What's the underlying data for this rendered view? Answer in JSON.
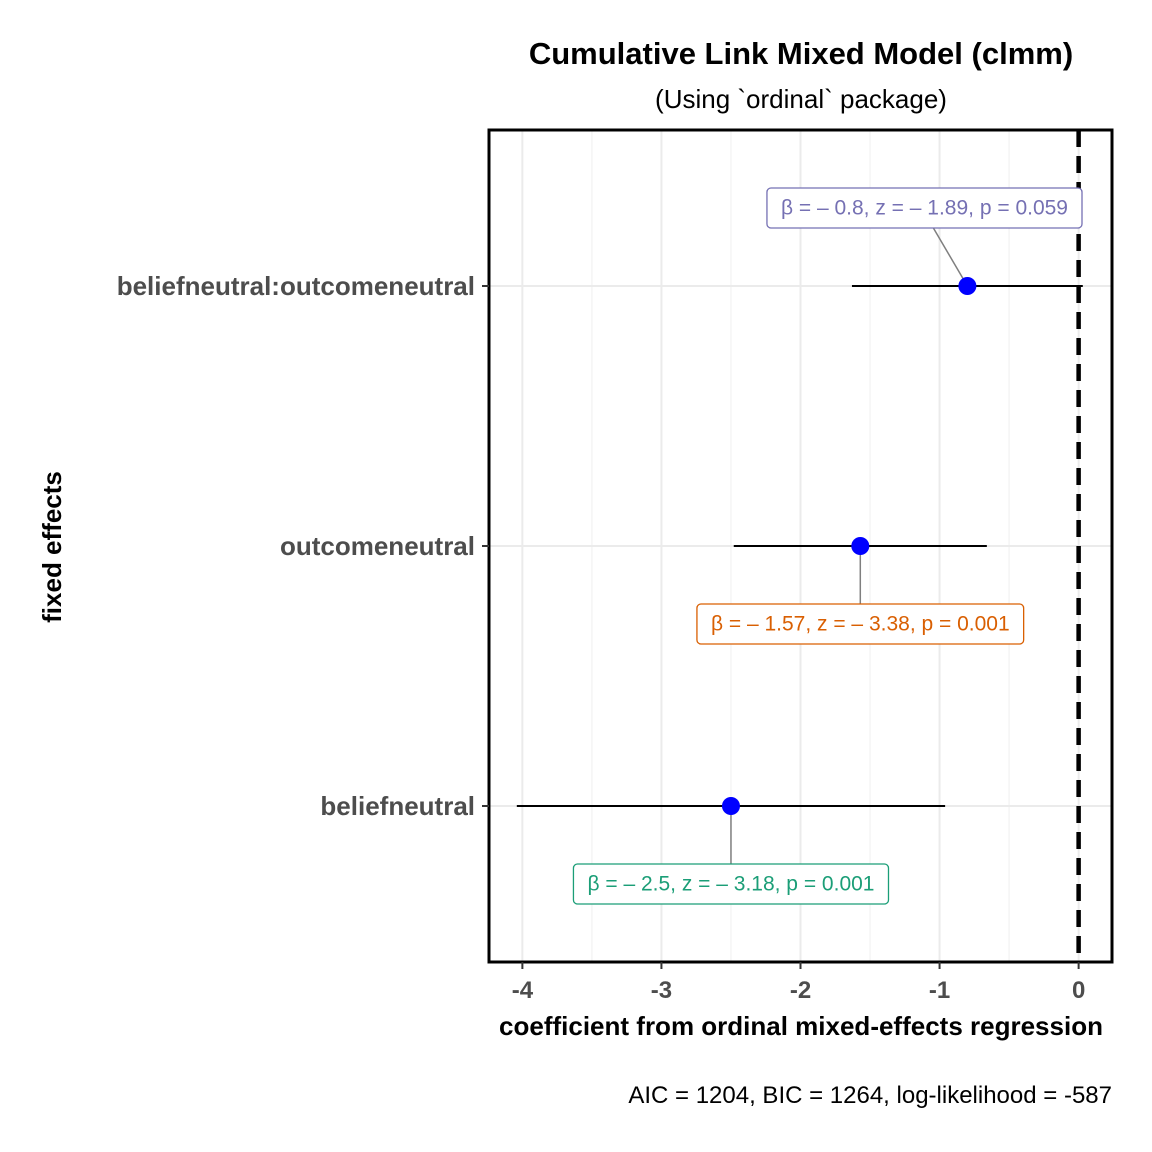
{
  "chart_data": {
    "type": "scatter",
    "title": "Cumulative Link Mixed Model (clmm)",
    "subtitle": "(Using `ordinal` package)",
    "xlabel": "coefficient from ordinal mixed-effects regression",
    "ylabel": "fixed effects",
    "caption": "AIC = 1204, BIC = 1264, log-likelihood = -587",
    "xlim": [
      -4.24,
      0.24
    ],
    "x_ticks": [
      -4,
      -3,
      -2,
      -1,
      0
    ],
    "x_tick_labels": [
      "-4",
      "-3",
      "-2",
      "-1",
      "0"
    ],
    "reference_line": 0,
    "grid": true,
    "categories": [
      "beliefneutral",
      "outcomeneutral",
      "beliefneutral:outcomeneutral"
    ],
    "estimates": [
      {
        "term": "beliefneutral",
        "estimate": -2.5,
        "conf_low": -4.04,
        "conf_high": -0.96,
        "label": "β = – 2.5,  z = – 3.18,  p = 0.001",
        "label_color": "#1b9e77",
        "label_side": "below"
      },
      {
        "term": "outcomeneutral",
        "estimate": -1.57,
        "conf_low": -2.48,
        "conf_high": -0.66,
        "label": "β = – 1.57,  z = – 3.38,  p = 0.001",
        "label_color": "#d95f02",
        "label_side": "below"
      },
      {
        "term": "beliefneutral:outcomeneutral",
        "estimate": -0.8,
        "conf_low": -1.63,
        "conf_high": 0.03,
        "label": "β = – 0.8,  z = – 1.89,  p = 0.059",
        "label_color": "#7570b3",
        "label_side": "above"
      }
    ],
    "point_color": "#0000ff"
  }
}
